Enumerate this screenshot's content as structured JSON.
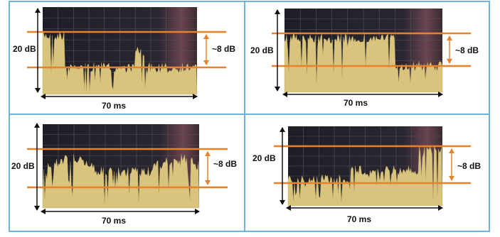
{
  "panels": [
    {
      "level_label": "20 dB",
      "delta_label": "~8 dB",
      "time_label": "70 ms"
    },
    {
      "level_label": "20 dB",
      "delta_label": "~8 dB",
      "time_label": "70 ms"
    },
    {
      "level_label": "20 dB",
      "delta_label": "~8 dB",
      "time_label": "70 ms"
    },
    {
      "level_label": "20 dB",
      "delta_label": "~8 dB",
      "time_label": "70 ms"
    }
  ]
}
